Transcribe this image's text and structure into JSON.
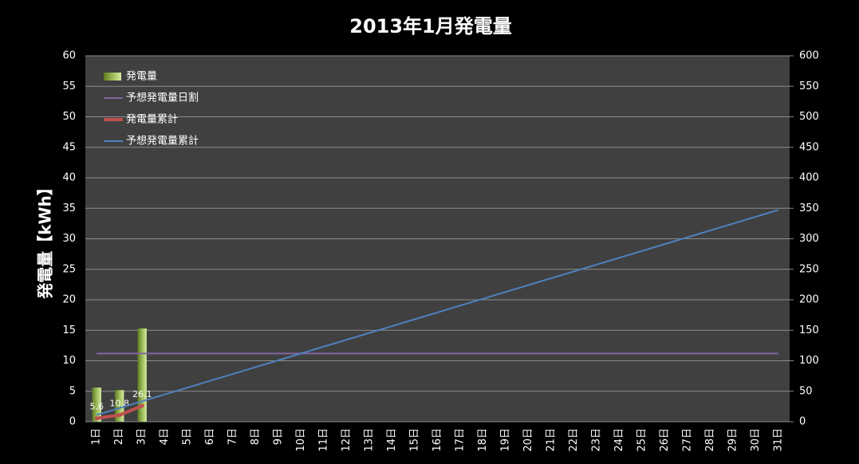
{
  "chart_data": {
    "type": "bar-line",
    "title": "2013年1月発電量",
    "ylabel": "発電量【kWh】",
    "categories": [
      "1日",
      "2日",
      "3日",
      "4日",
      "5日",
      "6日",
      "7日",
      "8日",
      "9日",
      "10日",
      "11日",
      "12日",
      "13日",
      "14日",
      "15日",
      "16日",
      "17日",
      "18日",
      "19日",
      "20日",
      "21日",
      "22日",
      "23日",
      "24日",
      "25日",
      "26日",
      "27日",
      "28日",
      "29日",
      "30日",
      "31日"
    ],
    "ylim": [
      0,
      60
    ],
    "yticks": [
      0,
      5,
      10,
      15,
      20,
      25,
      30,
      35,
      40,
      45,
      50,
      55,
      60
    ],
    "y2lim": [
      0,
      600
    ],
    "y2ticks": [
      0,
      50,
      100,
      150,
      200,
      250,
      300,
      350,
      400,
      450,
      500,
      550,
      600
    ],
    "grid": true,
    "legend": "top-left",
    "series": [
      {
        "name": "発電量",
        "type": "bar",
        "color": "#9bbb59",
        "values": [
          5.6,
          5.2,
          15.3,
          null,
          null,
          null,
          null,
          null,
          null,
          null,
          null,
          null,
          null,
          null,
          null,
          null,
          null,
          null,
          null,
          null,
          null,
          null,
          null,
          null,
          null,
          null,
          null,
          null,
          null,
          null,
          null
        ]
      },
      {
        "name": "予想発電量日割",
        "type": "line",
        "color": "#8064a2",
        "values": [
          11.2,
          11.2,
          11.2,
          11.2,
          11.2,
          11.2,
          11.2,
          11.2,
          11.2,
          11.2,
          11.2,
          11.2,
          11.2,
          11.2,
          11.2,
          11.2,
          11.2,
          11.2,
          11.2,
          11.2,
          11.2,
          11.2,
          11.2,
          11.2,
          11.2,
          11.2,
          11.2,
          11.2,
          11.2,
          11.2,
          11.2
        ]
      },
      {
        "name": "発電量累計",
        "type": "line",
        "axis": "y2",
        "color": "#c0504d",
        "data_labels": true,
        "values": [
          5.6,
          10.8,
          26.1,
          null,
          null,
          null,
          null,
          null,
          null,
          null,
          null,
          null,
          null,
          null,
          null,
          null,
          null,
          null,
          null,
          null,
          null,
          null,
          null,
          null,
          null,
          null,
          null,
          null,
          null,
          null,
          null
        ]
      },
      {
        "name": "予想発電量累計",
        "type": "line",
        "axis": "y2",
        "color": "#4f81bd",
        "values": [
          11.2,
          22.4,
          33.6,
          44.8,
          56,
          67.2,
          78.4,
          89.6,
          100.8,
          112,
          123.2,
          134.4,
          145.6,
          156.8,
          168,
          179.2,
          190.4,
          201.6,
          212.8,
          224,
          235.2,
          246.4,
          257.6,
          268.8,
          280,
          291.2,
          302.4,
          313.6,
          324.8,
          336,
          347.2
        ]
      }
    ]
  }
}
